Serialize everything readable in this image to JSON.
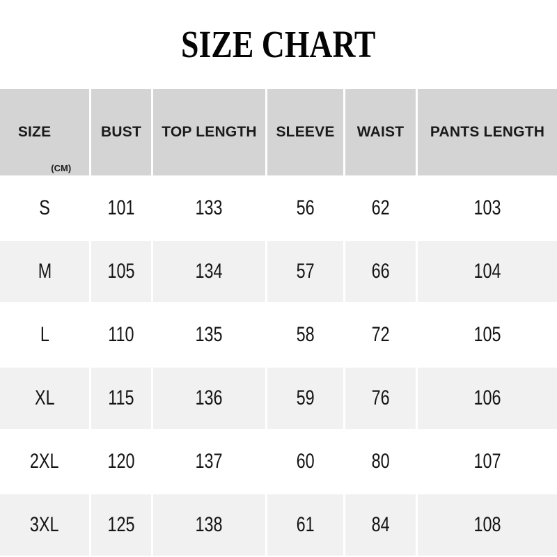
{
  "title": "SIZE CHART",
  "table": {
    "header": {
      "size_label": "SIZE",
      "size_unit": "(CM)",
      "columns": [
        "BUST",
        "TOP LENGTH",
        "SLEEVE",
        "WAIST",
        "PANTS LENGTH"
      ]
    },
    "rows": [
      [
        "S",
        "101",
        "133",
        "56",
        "62",
        "103"
      ],
      [
        "M",
        "105",
        "134",
        "57",
        "66",
        "104"
      ],
      [
        "L",
        "110",
        "135",
        "58",
        "72",
        "105"
      ],
      [
        "XL",
        "115",
        "136",
        "59",
        "76",
        "106"
      ],
      [
        "2XL",
        "120",
        "137",
        "60",
        "80",
        "107"
      ],
      [
        "3XL",
        "125",
        "138",
        "61",
        "84",
        "108"
      ]
    ]
  },
  "colors": {
    "header_bg": "#d4d4d4",
    "row_bg": "#ffffff",
    "row_alt_bg": "#f1f1f1",
    "text": "#141414",
    "title_text": "#050505"
  },
  "chart_data": {
    "type": "table",
    "title": "SIZE CHART",
    "unit": "CM",
    "columns": [
      "SIZE",
      "BUST",
      "TOP LENGTH",
      "SLEEVE",
      "WAIST",
      "PANTS LENGTH"
    ],
    "rows": [
      [
        "S",
        101,
        133,
        56,
        62,
        103
      ],
      [
        "M",
        105,
        134,
        57,
        66,
        104
      ],
      [
        "L",
        110,
        135,
        58,
        72,
        105
      ],
      [
        "XL",
        115,
        136,
        59,
        76,
        106
      ],
      [
        "2XL",
        120,
        137,
        60,
        80,
        107
      ],
      [
        "3XL",
        125,
        138,
        61,
        84,
        108
      ]
    ]
  }
}
